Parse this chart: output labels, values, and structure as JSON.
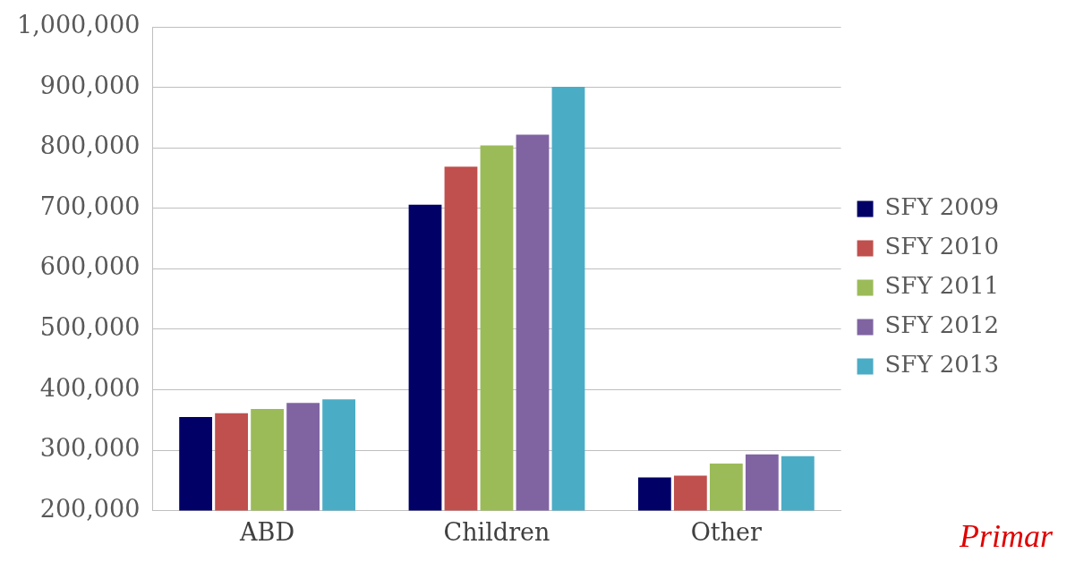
{
  "chart_data": {
    "type": "bar",
    "categories": [
      "ABD",
      "Children",
      "Other"
    ],
    "series": [
      {
        "name": "SFY 2009",
        "color": "#000066",
        "values": [
          355000,
          706000,
          255000
        ]
      },
      {
        "name": "SFY 2010",
        "color": "#c0504d",
        "values": [
          361000,
          769000,
          258000
        ]
      },
      {
        "name": "SFY 2011",
        "color": "#9bbb59",
        "values": [
          368000,
          804000,
          278000
        ]
      },
      {
        "name": "SFY 2012",
        "color": "#8064a2",
        "values": [
          378000,
          822000,
          293000
        ]
      },
      {
        "name": "SFY 2013",
        "color": "#4bacc6",
        "values": [
          384000,
          901000,
          290000
        ]
      }
    ],
    "ylim": [
      200000,
      1000000
    ],
    "yticks": [
      {
        "value": 200000,
        "label": "200,000"
      },
      {
        "value": 300000,
        "label": "300,000"
      },
      {
        "value": 400000,
        "label": "400,000"
      },
      {
        "value": 500000,
        "label": "500,000"
      },
      {
        "value": 600000,
        "label": "600,000"
      },
      {
        "value": 700000,
        "label": "700,000"
      },
      {
        "value": 800000,
        "label": "800,000"
      },
      {
        "value": 900000,
        "label": "900,000"
      },
      {
        "value": 1000000,
        "label": "1,000,000"
      }
    ],
    "grid": "y",
    "legend": "right",
    "annotations": [
      "Primar"
    ]
  }
}
